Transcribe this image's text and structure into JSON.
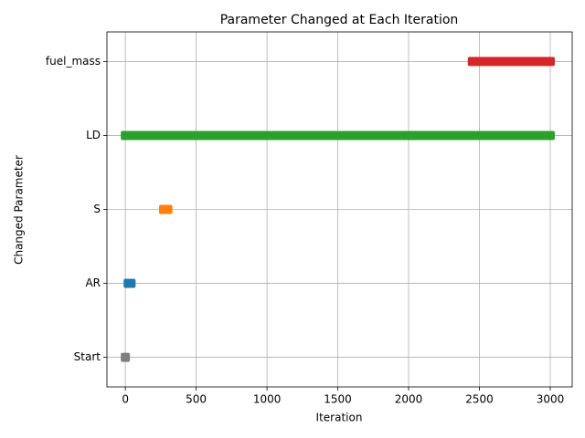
{
  "chart_data": {
    "type": "range",
    "title": "Parameter Changed at Each Iteration",
    "xlabel": "Iteration",
    "ylabel": "Changed Parameter",
    "categories": [
      "Start",
      "AR",
      "S",
      "LD",
      "fuel_mass"
    ],
    "ranges": [
      {
        "color": "#7f7f7f",
        "x": [
          0,
          0
        ]
      },
      {
        "color": "#1f77b4",
        "x": [
          20,
          40
        ]
      },
      {
        "color": "#ff7f0e",
        "x": [
          270,
          300
        ]
      },
      {
        "color": "#2ca02c",
        "x": [
          0,
          3000
        ]
      },
      {
        "color": "#d62728",
        "x": [
          2450,
          3000
        ]
      }
    ],
    "xlim": [
      -130,
      3155
    ],
    "xticks": [
      0,
      500,
      1000,
      1500,
      2000,
      2500,
      3000
    ],
    "grid": true
  }
}
